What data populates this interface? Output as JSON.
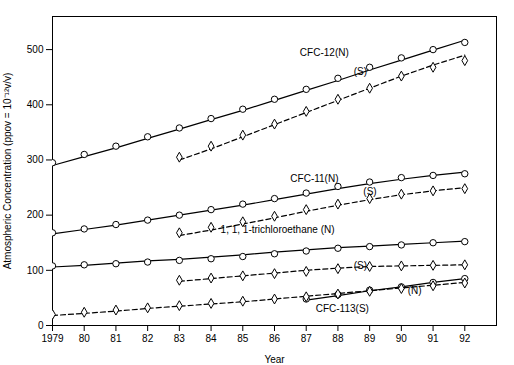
{
  "chart_data": {
    "type": "line",
    "xlabel": "Year",
    "ylabel": "Atmospheric Concentration (ppov = 10⁻¹²v/v)",
    "x": [
      1979,
      1980,
      1981,
      1982,
      1983,
      1984,
      1985,
      1986,
      1987,
      1988,
      1989,
      1990,
      1991,
      1992
    ],
    "xlim": [
      1979,
      1993
    ],
    "xticks": [
      1979,
      {
        "value": 1980,
        "label": "80"
      },
      {
        "value": 1981,
        "label": "81"
      },
      {
        "value": 1982,
        "label": "82"
      },
      {
        "value": 1983,
        "label": "83"
      },
      {
        "value": 1984,
        "label": "84"
      },
      {
        "value": 1985,
        "label": "85"
      },
      {
        "value": 1986,
        "label": "86"
      },
      {
        "value": 1987,
        "label": "87"
      },
      {
        "value": 1988,
        "label": "88"
      },
      {
        "value": 1989,
        "label": "89"
      },
      {
        "value": 1990,
        "label": "90"
      },
      {
        "value": 1991,
        "label": "91"
      },
      {
        "value": 1992,
        "label": "92"
      }
    ],
    "ylim": [
      0,
      560
    ],
    "yticks": [
      0,
      100,
      200,
      300,
      400,
      500
    ],
    "series": [
      {
        "type": "line",
        "line_style": "solid",
        "color": "black",
        "values": [
          290,
          306,
          322,
          339,
          356,
          373,
          390,
          408,
          426,
          444,
          463,
          481,
          499,
          517
        ]
      },
      {
        "type": "scatter",
        "marker": "circle",
        "color": "black",
        "values": [
          295,
          310,
          325,
          342,
          358,
          375,
          392,
          410,
          428,
          448,
          468,
          485,
          500,
          513
        ]
      },
      {
        "type": "line",
        "line_style": "dashed",
        "color": "black",
        "values": [
          null,
          null,
          null,
          null,
          300,
          320,
          342,
          364,
          386,
          408,
          430,
          452,
          472,
          490
        ]
      },
      {
        "type": "scatter",
        "marker": "diamond",
        "color": "black",
        "values": [
          null,
          null,
          null,
          null,
          305,
          325,
          345,
          365,
          388,
          410,
          430,
          452,
          468,
          480
        ]
      },
      {
        "type": "line",
        "line_style": "solid",
        "color": "black",
        "values": [
          166,
          174,
          182,
          191,
          200,
          209,
          218,
          228,
          238,
          248,
          257,
          265,
          272,
          278
        ]
      },
      {
        "type": "scatter",
        "marker": "circle",
        "color": "black",
        "values": [
          168,
          175,
          183,
          191,
          200,
          210,
          220,
          230,
          240,
          252,
          260,
          268,
          272,
          275
        ]
      },
      {
        "type": "line",
        "line_style": "dashed",
        "color": "black",
        "values": [
          null,
          null,
          null,
          null,
          163,
          173,
          184,
          195,
          207,
          218,
          228,
          237,
          244,
          250
        ]
      },
      {
        "type": "scatter",
        "marker": "diamond",
        "color": "black",
        "values": [
          null,
          null,
          null,
          null,
          168,
          178,
          188,
          198,
          210,
          220,
          230,
          238,
          244,
          248
        ]
      },
      {
        "type": "line",
        "line_style": "solid",
        "color": "black",
        "values": [
          106,
          109,
          113,
          117,
          120,
          124,
          128,
          133,
          137,
          141,
          144,
          147,
          150,
          153
        ]
      },
      {
        "type": "scatter",
        "marker": "circle",
        "color": "black",
        "values": [
          108,
          110,
          112,
          115,
          118,
          121,
          125,
          130,
          135,
          140,
          143,
          146,
          150,
          152
        ]
      },
      {
        "type": "line",
        "line_style": "dashed",
        "color": "black",
        "values": [
          null,
          null,
          null,
          null,
          80,
          85,
          90,
          95,
          100,
          104,
          107,
          108,
          109,
          110
        ]
      },
      {
        "type": "scatter",
        "marker": "diamond",
        "color": "black",
        "values": [
          null,
          null,
          null,
          null,
          82,
          86,
          90,
          94,
          98,
          103,
          107,
          108,
          109,
          110
        ]
      },
      {
        "type": "line",
        "line_style": "solid",
        "color": "black",
        "values": [
          null,
          null,
          null,
          null,
          null,
          null,
          null,
          null,
          46,
          54,
          63,
          70,
          78,
          85
        ]
      },
      {
        "type": "scatter",
        "marker": "circle",
        "color": "black",
        "values": [
          null,
          null,
          null,
          null,
          null,
          null,
          null,
          null,
          48,
          56,
          64,
          70,
          78,
          85
        ]
      },
      {
        "type": "line",
        "line_style": "dashed",
        "color": "black",
        "values": [
          18,
          22,
          26,
          31,
          35,
          39,
          43,
          48,
          53,
          58,
          63,
          68,
          73,
          78
        ]
      },
      {
        "type": "scatter",
        "marker": "diamond",
        "color": "black",
        "values": [
          20,
          24,
          28,
          32,
          36,
          40,
          44,
          48,
          52,
          57,
          62,
          67,
          72,
          77
        ]
      }
    ],
    "annotations": [
      {
        "x": 1986.8,
        "y": 488,
        "text": "CFC-12(N)"
      },
      {
        "x": 1988.5,
        "y": 454,
        "text": "(S)"
      },
      {
        "x": 1986.5,
        "y": 260,
        "text": "CFC-11(N)"
      },
      {
        "x": 1988.8,
        "y": 236,
        "text": "(S)"
      },
      {
        "x": 1984.3,
        "y": 167,
        "text": "1, 1, 1-trichloroethane (N)"
      },
      {
        "x": 1988.5,
        "y": 103,
        "text": "(S)"
      },
      {
        "x": 1990.2,
        "y": 57,
        "text": "(N)"
      },
      {
        "x": 1987.3,
        "y": 25,
        "text": "CFC-113(S)"
      }
    ]
  }
}
